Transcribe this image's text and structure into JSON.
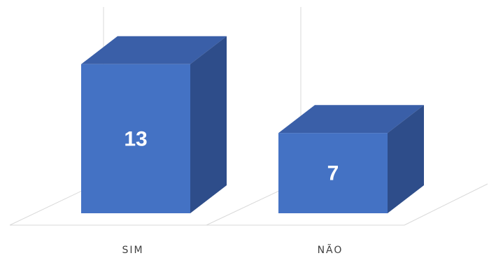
{
  "chart_data": {
    "type": "bar",
    "style": "3d-column",
    "categories": [
      "SIM",
      "NÃO"
    ],
    "values": [
      13,
      7
    ],
    "data_labels": [
      "13",
      "7"
    ],
    "ylim": [
      0,
      14
    ],
    "title": "",
    "xlabel": "",
    "ylabel": "",
    "legend": "none",
    "grid": true,
    "colors": {
      "bar_front": "#4472C4",
      "bar_top": "#3A5FA8",
      "bar_side": "#2E4D8A",
      "grid": "#d9d9d9",
      "label": "#ffffff",
      "tick": "#404040"
    }
  }
}
